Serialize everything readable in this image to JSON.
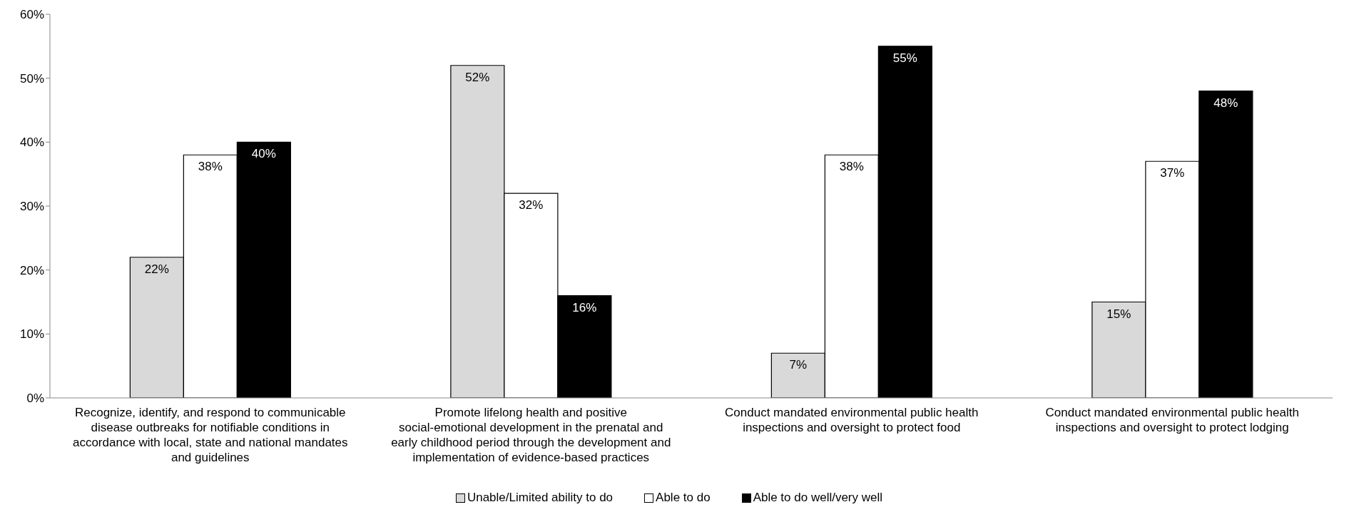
{
  "chart_data": {
    "type": "bar",
    "categories": [
      "Recognize, identify, and respond to communicable disease outbreaks for notifiable conditions in accordance with local, state and national mandates and guidelines",
      "Promote lifelong health and positive social-emotional development in the prenatal and early childhood period through the development and implementation of evidence-based practices",
      "Conduct mandated environmental public health inspections and oversight to protect food",
      "Conduct mandated environmental public health inspections and oversight to protect lodging"
    ],
    "series": [
      {
        "name": "Unable/Limited ability to do",
        "color": "#d9d9d9",
        "values": [
          22,
          52,
          7,
          15
        ],
        "value_labels": [
          "22%",
          "52%",
          "7%",
          "15%"
        ]
      },
      {
        "name": "Able to do",
        "color": "#ffffff",
        "values": [
          38,
          32,
          38,
          37
        ],
        "value_labels": [
          "38%",
          "32%",
          "38%",
          "37%"
        ]
      },
      {
        "name": "Able to do well/very well",
        "color": "#000000",
        "values": [
          40,
          16,
          55,
          48
        ],
        "value_labels": [
          "40%",
          "16%",
          "55%",
          "48%"
        ]
      }
    ],
    "ylim": [
      0,
      60
    ],
    "yticks": [
      {
        "value": 0,
        "label": "0%"
      },
      {
        "value": 10,
        "label": "10%"
      },
      {
        "value": 20,
        "label": "20%"
      },
      {
        "value": 30,
        "label": "30%"
      },
      {
        "value": 40,
        "label": "40%"
      },
      {
        "value": 50,
        "label": "50%"
      },
      {
        "value": 60,
        "label": "60%"
      }
    ],
    "grid": false,
    "legend": "bottom"
  }
}
